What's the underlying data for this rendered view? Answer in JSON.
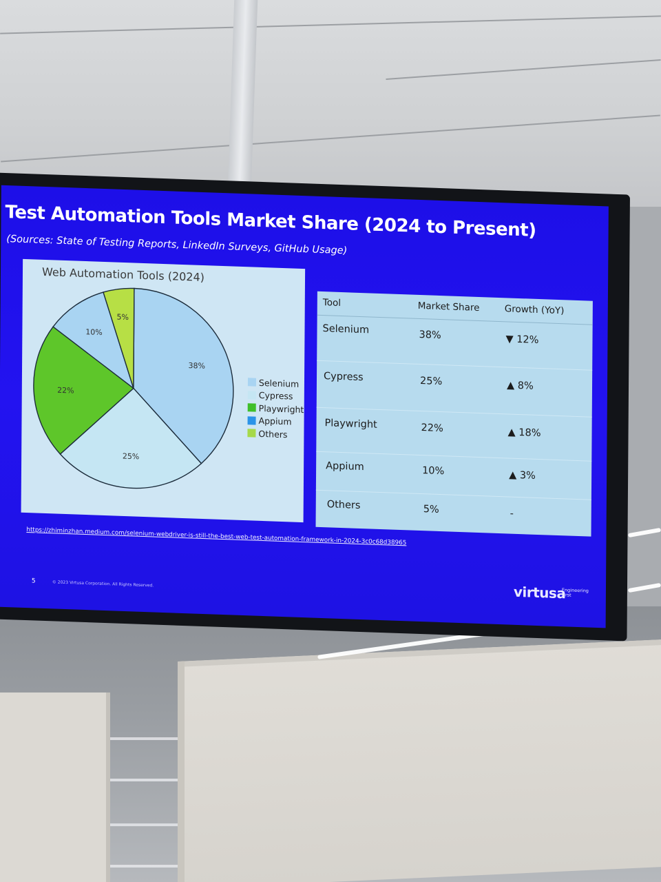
{
  "slide": {
    "title": "Test Automation Tools Market Share (2024 to Present)",
    "subtitle": "(Sources: State of Testing Reports, LinkedIn Surveys, GitHub Usage)",
    "source_link": "https://zhiminzhan.medium.com/selenium-webdriver-is-still-the-best-web-test-automation-framework-in-2024-3c0c68d38965",
    "page_number": "5",
    "copyright": "© 2023 Virtusa Corporation. All Rights Reserved.",
    "brand": "virtusa",
    "brand_tagline": "Engineering First"
  },
  "chart_data": {
    "type": "pie",
    "title": "Web Automation Tools (2024)",
    "categories": [
      "Selenium",
      "Cypress",
      "Playwright",
      "Appium",
      "Others"
    ],
    "values": [
      38,
      25,
      22,
      10,
      5
    ],
    "data_labels": [
      "38%",
      "25%",
      "22%",
      "10%",
      "5%"
    ],
    "colors": [
      "#a9d4f2",
      "#c5e6f3",
      "#5ec62a",
      "#a9d4f2",
      "#b7df45"
    ],
    "legend_colors": [
      "#a9d4f2",
      "#c5e6f3",
      "#3fbf2a",
      "#2b94e8",
      "#a6d94a"
    ],
    "legend_position": "right"
  },
  "table": {
    "headers": [
      "Tool",
      "Market Share",
      "Growth (YoY)"
    ],
    "rows": [
      {
        "tool": "Selenium",
        "share": "38%",
        "growth": "▼ 12%"
      },
      {
        "tool": "Cypress",
        "share": "25%",
        "growth": "▲ 8%"
      },
      {
        "tool": "Playwright",
        "share": "22%",
        "growth": "▲ 18%"
      },
      {
        "tool": "Appium",
        "share": "10%",
        "growth": "▲ 3%"
      },
      {
        "tool": "Others",
        "share": "5%",
        "growth": "-"
      }
    ]
  }
}
